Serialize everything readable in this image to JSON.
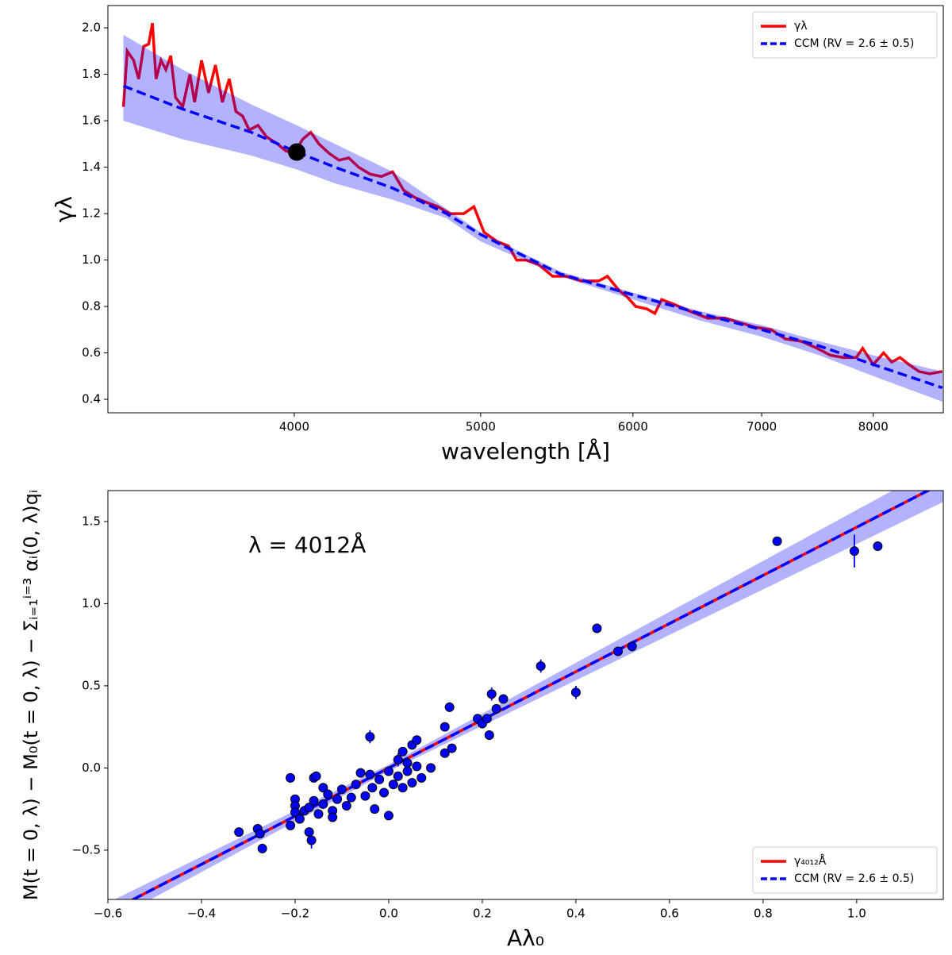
{
  "chart_data": [
    {
      "type": "line",
      "x_label": "wavelength [Å]",
      "y_label": "γλ",
      "xscale": "log",
      "xlim": [
        3200,
        8700
      ],
      "ylim": [
        0.342,
        2.096
      ],
      "xticks": [
        4000,
        5000,
        6000,
        7000,
        8000
      ],
      "yticks": [
        0.4,
        0.6,
        0.8,
        {
          "value": 1,
          "label": "1.0"
        },
        1.2,
        1.4,
        1.6,
        1.8,
        {
          "value": 2,
          "label": "2.0"
        }
      ],
      "legend": "upper right",
      "band": {
        "color": "#0000ff",
        "alpha": 0.3,
        "x": [
          3260,
          3500,
          3800,
          4012,
          4200,
          4500,
          4800,
          5000,
          5500,
          6000,
          6500,
          7000,
          7500,
          8000,
          8690
        ],
        "lower": [
          1.6,
          1.52,
          1.45,
          1.39,
          1.33,
          1.26,
          1.18,
          1.08,
          0.93,
          0.83,
          0.74,
          0.67,
          0.59,
          0.5,
          0.39
        ],
        "upper": [
          1.97,
          1.82,
          1.67,
          1.58,
          1.5,
          1.38,
          1.22,
          1.12,
          0.95,
          0.86,
          0.78,
          0.72,
          0.65,
          0.59,
          0.52
        ]
      },
      "series": [
        {
          "name": "γλ",
          "color": "#ff0000",
          "style": "solid",
          "x": [
            3260,
            3275,
            3300,
            3320,
            3340,
            3360,
            3375,
            3390,
            3410,
            3430,
            3450,
            3470,
            3500,
            3530,
            3550,
            3580,
            3610,
            3640,
            3670,
            3700,
            3730,
            3760,
            3790,
            3830,
            3870,
            3920,
            3960,
            4000,
            4040,
            4080,
            4120,
            4170,
            4220,
            4270,
            4320,
            4380,
            4440,
            4500,
            4560,
            4620,
            4680,
            4750,
            4820,
            4900,
            4960,
            5020,
            5100,
            5170,
            5220,
            5280,
            5360,
            5450,
            5540,
            5640,
            5760,
            5820,
            5900,
            5960,
            6020,
            6100,
            6160,
            6210,
            6300,
            6420,
            6560,
            6700,
            6820,
            6950,
            7080,
            7200,
            7340,
            7480,
            7600,
            7720,
            7840,
            7900,
            8000,
            8100,
            8180,
            8260,
            8350,
            8450,
            8560,
            8690
          ],
          "values": [
            1.66,
            1.9,
            1.86,
            1.78,
            1.92,
            1.93,
            2.02,
            1.78,
            1.86,
            1.82,
            1.88,
            1.7,
            1.66,
            1.8,
            1.68,
            1.86,
            1.72,
            1.84,
            1.68,
            1.78,
            1.64,
            1.62,
            1.56,
            1.58,
            1.53,
            1.5,
            1.47,
            1.46,
            1.52,
            1.55,
            1.5,
            1.46,
            1.43,
            1.44,
            1.4,
            1.37,
            1.36,
            1.38,
            1.3,
            1.27,
            1.25,
            1.23,
            1.2,
            1.2,
            1.23,
            1.12,
            1.08,
            1.06,
            1.0,
            1.0,
            0.98,
            0.93,
            0.93,
            0.91,
            0.91,
            0.93,
            0.87,
            0.84,
            0.8,
            0.79,
            0.77,
            0.83,
            0.81,
            0.78,
            0.75,
            0.75,
            0.73,
            0.71,
            0.7,
            0.66,
            0.65,
            0.62,
            0.59,
            0.58,
            0.58,
            0.62,
            0.55,
            0.6,
            0.56,
            0.58,
            0.55,
            0.52,
            0.51,
            0.52
          ]
        },
        {
          "name": "CCM (RV = 2.6 ± 0.5)",
          "color": "#0000ff",
          "style": "dashed",
          "x": [
            3260,
            3500,
            3800,
            4012,
            4200,
            4500,
            4800,
            5000,
            5500,
            6000,
            6500,
            7000,
            7500,
            8000,
            8690
          ],
          "values": [
            1.75,
            1.65,
            1.55,
            1.465,
            1.4,
            1.31,
            1.2,
            1.11,
            0.94,
            0.85,
            0.77,
            0.7,
            0.63,
            0.55,
            0.45
          ]
        }
      ],
      "marker": {
        "x": 4012,
        "y": 1.465,
        "color": "#000000"
      }
    },
    {
      "type": "scatter",
      "x_label": "Aλ₀",
      "y_label": "M(t = 0, λ) − M₀(t = 0, λ) − Σᵢ₌₁ⁱ⁼³ αᵢ(0, λ)qᵢ",
      "annotation": "λ = 4012Å",
      "xlim": [
        -0.6,
        1.185
      ],
      "ylim": [
        -0.8,
        1.688
      ],
      "xticks": [
        {
          "value": -0.6,
          "label": "−0.6"
        },
        {
          "value": -0.4,
          "label": "−0.4"
        },
        {
          "value": -0.2,
          "label": "−0.2"
        },
        {
          "value": 0,
          "label": "0.0"
        },
        0.2,
        0.4,
        0.6,
        0.8,
        {
          "value": 1,
          "label": "1.0"
        }
      ],
      "yticks": [
        {
          "value": -0.5,
          "label": "−0.5"
        },
        {
          "value": 0,
          "label": "0.0"
        },
        0.5,
        {
          "value": 1,
          "label": "1.0"
        },
        1.5
      ],
      "legend": "lower right",
      "band": {
        "color": "#0000ff",
        "alpha": 0.3,
        "x": [
          -0.6,
          0,
          1.2
        ],
        "lower": [
          -0.94,
          -0.02,
          1.64
        ],
        "upper": [
          -0.82,
          0.02,
          1.88
        ]
      },
      "series": [
        {
          "name": "γ₄₀₁₂Å",
          "color": "#ff0000",
          "style": "solid",
          "x": [
            -0.6,
            1.2
          ],
          "values": [
            -0.879,
            1.758
          ]
        },
        {
          "name": "CCM (RV = 2.6 ± 0.5)",
          "color": "#0000ff",
          "style": "dashed",
          "x": [
            -0.6,
            1.2
          ],
          "values": [
            -0.879,
            1.758
          ]
        }
      ],
      "points": {
        "color": "#0000ff",
        "x": [
          -0.32,
          -0.28,
          -0.275,
          -0.27,
          -0.21,
          -0.21,
          -0.2,
          -0.2,
          -0.2,
          -0.19,
          -0.18,
          -0.17,
          -0.17,
          -0.165,
          -0.16,
          -0.155,
          -0.16,
          -0.15,
          -0.14,
          -0.14,
          -0.13,
          -0.12,
          -0.12,
          -0.11,
          -0.1,
          -0.09,
          -0.08,
          -0.07,
          -0.06,
          -0.05,
          -0.04,
          -0.04,
          -0.035,
          -0.03,
          -0.02,
          -0.01,
          0,
          0,
          0.01,
          0.02,
          0.02,
          0.03,
          0.03,
          0.04,
          0.04,
          0.05,
          0.05,
          0.06,
          0.06,
          0.07,
          0.09,
          0.12,
          0.12,
          0.13,
          0.135,
          0.19,
          0.2,
          0.21,
          0.215,
          0.22,
          0.23,
          0.245,
          0.325,
          0.4,
          0.445,
          0.49,
          0.52,
          0.83,
          0.995,
          1.045
        ],
        "values": [
          -0.39,
          -0.37,
          -0.4,
          -0.49,
          -0.06,
          -0.35,
          -0.19,
          -0.23,
          -0.27,
          -0.31,
          -0.26,
          -0.24,
          -0.39,
          -0.44,
          -0.06,
          -0.05,
          -0.2,
          -0.28,
          -0.12,
          -0.22,
          -0.16,
          -0.26,
          -0.3,
          -0.19,
          -0.13,
          -0.23,
          -0.18,
          -0.1,
          -0.03,
          -0.17,
          0.19,
          -0.04,
          -0.12,
          -0.25,
          -0.07,
          -0.15,
          -0.29,
          -0.02,
          -0.1,
          -0.05,
          0.05,
          -0.12,
          0.1,
          0.03,
          -0.02,
          0.14,
          -0.09,
          0.17,
          0.01,
          -0.06,
          0,
          0.25,
          0.09,
          0.37,
          0.12,
          0.3,
          0.27,
          0.3,
          0.2,
          0.45,
          0.36,
          0.42,
          0.62,
          0.46,
          0.85,
          0.71,
          0.74,
          1.38,
          1.32,
          1.35
        ],
        "errors": [
          0.02,
          0.02,
          0.02,
          0.02,
          0.02,
          0.02,
          0.02,
          0.02,
          0.02,
          0.02,
          0.02,
          0.02,
          0.02,
          0.05,
          0.02,
          0.02,
          0.02,
          0.02,
          0.02,
          0.02,
          0.02,
          0.02,
          0.02,
          0.02,
          0.02,
          0.02,
          0.02,
          0.02,
          0.02,
          0.02,
          0.04,
          0.02,
          0.02,
          0.02,
          0.02,
          0.02,
          0.02,
          0.02,
          0.02,
          0.02,
          0.04,
          0.02,
          0.02,
          0.02,
          0.02,
          0.02,
          0.02,
          0.02,
          0.02,
          0.02,
          0.02,
          0.02,
          0.02,
          0.03,
          0.02,
          0.02,
          0.02,
          0.02,
          0.02,
          0.04,
          0.02,
          0.02,
          0.04,
          0.04,
          0.02,
          0.02,
          0.03,
          0.02,
          0.1,
          0.02
        ]
      }
    }
  ]
}
